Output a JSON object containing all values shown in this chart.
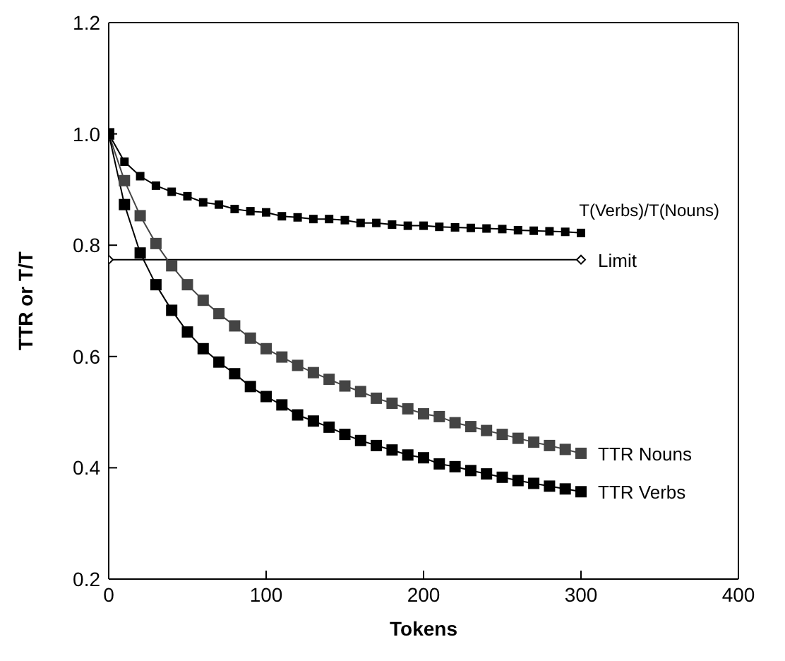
{
  "chart_data": {
    "type": "line",
    "xlabel": "Tokens",
    "ylabel": "TTR or T/T",
    "x": [
      0,
      10,
      20,
      30,
      40,
      50,
      60,
      70,
      80,
      90,
      100,
      110,
      120,
      130,
      140,
      150,
      160,
      170,
      180,
      190,
      200,
      210,
      220,
      230,
      240,
      250,
      260,
      270,
      280,
      290,
      300
    ],
    "series": [
      {
        "name": "T(Verbs)/T(Nouns)",
        "color": "#000000",
        "values": [
          1.0,
          0.95,
          0.924,
          0.907,
          0.896,
          0.888,
          0.877,
          0.873,
          0.865,
          0.861,
          0.859,
          0.852,
          0.85,
          0.847,
          0.847,
          0.845,
          0.84,
          0.84,
          0.837,
          0.835,
          0.835,
          0.833,
          0.832,
          0.831,
          0.83,
          0.829,
          0.827,
          0.826,
          0.825,
          0.824,
          0.822
        ]
      },
      {
        "name": "Limit",
        "color": "#000000",
        "x": [
          0,
          300
        ],
        "values": [
          0.774,
          0.774
        ],
        "marker": "diamond"
      },
      {
        "name": "TTR Nouns",
        "color": "#444444",
        "values": [
          1.0,
          0.916,
          0.853,
          0.803,
          0.763,
          0.729,
          0.701,
          0.677,
          0.655,
          0.633,
          0.614,
          0.599,
          0.584,
          0.571,
          0.559,
          0.547,
          0.537,
          0.525,
          0.516,
          0.506,
          0.497,
          0.492,
          0.481,
          0.474,
          0.467,
          0.46,
          0.453,
          0.446,
          0.44,
          0.433,
          0.426
        ]
      },
      {
        "name": "TTR Verbs",
        "color": "#000000",
        "values": [
          1.0,
          0.873,
          0.786,
          0.729,
          0.683,
          0.644,
          0.614,
          0.59,
          0.569,
          0.546,
          0.528,
          0.513,
          0.495,
          0.484,
          0.473,
          0.46,
          0.449,
          0.44,
          0.432,
          0.423,
          0.418,
          0.407,
          0.402,
          0.395,
          0.389,
          0.383,
          0.377,
          0.372,
          0.367,
          0.362,
          0.357
        ]
      }
    ],
    "xlim": [
      0,
      400
    ],
    "xticks": [
      0,
      100,
      200,
      300,
      400
    ],
    "ylim": [
      0.2,
      1.2
    ],
    "yticks": [
      {
        "value": 0.2,
        "label": "0.2"
      },
      {
        "value": 0.4,
        "label": "0.4"
      },
      {
        "value": 0.6,
        "label": "0.6"
      },
      {
        "value": 0.8,
        "label": "0.8"
      },
      {
        "value": 1,
        "label": "1.0"
      },
      {
        "value": 1.2,
        "label": "1.2"
      }
    ],
    "marker": "square",
    "line_style": "solid",
    "grid": false,
    "legend": false
  }
}
